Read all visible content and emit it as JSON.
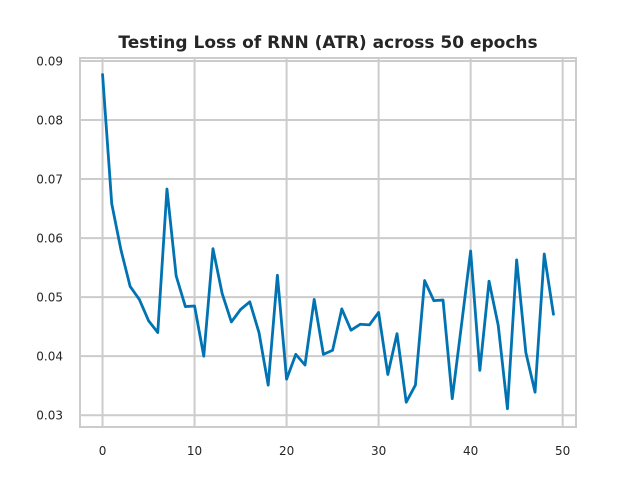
{
  "chart_data": {
    "type": "line",
    "title": "Testing Loss of RNN (ATR) across 50 epochs",
    "xlabel": "",
    "ylabel": "",
    "xlim": [
      -2.45,
      51.45
    ],
    "ylim": [
      0.028,
      0.0905
    ],
    "x_ticks": [
      0,
      10,
      20,
      30,
      40,
      50
    ],
    "y_ticks": [
      0.03,
      0.04,
      0.05,
      0.06,
      0.07,
      0.08,
      0.09
    ],
    "x_tick_labels": [
      "0",
      "10",
      "20",
      "30",
      "40",
      "50"
    ],
    "y_tick_labels": [
      "0.03",
      "0.04",
      "0.05",
      "0.06",
      "0.07",
      "0.08",
      "0.09"
    ],
    "grid": true,
    "legend": "none",
    "line_color": "#0173b2",
    "grid_color": "#cccccc",
    "series": [
      {
        "x": [
          0,
          1,
          2,
          3,
          4,
          5,
          6,
          7,
          8,
          9,
          10,
          11,
          12,
          13,
          14,
          15,
          16,
          17,
          18,
          19,
          20,
          21,
          22,
          23,
          24,
          25,
          26,
          27,
          28,
          29,
          30,
          31,
          32,
          33,
          34,
          35,
          36,
          37,
          38,
          39,
          40,
          41,
          42,
          43,
          44,
          45,
          46,
          47,
          48,
          49
        ],
        "values": [
          0.0877,
          0.0658,
          0.058,
          0.0518,
          0.0496,
          0.046,
          0.044,
          0.0683,
          0.0536,
          0.0484,
          0.0485,
          0.04,
          0.0582,
          0.0506,
          0.0458,
          0.0479,
          0.0492,
          0.044,
          0.0351,
          0.0537,
          0.0361,
          0.0403,
          0.0385,
          0.0496,
          0.0403,
          0.041,
          0.048,
          0.0444,
          0.0454,
          0.0453,
          0.0474,
          0.0369,
          0.0438,
          0.0322,
          0.0351,
          0.0528,
          0.0494,
          0.0495,
          0.0328,
          0.0452,
          0.0578,
          0.0376,
          0.0527,
          0.0452,
          0.0311,
          0.0563,
          0.0406,
          0.0339,
          0.0573,
          0.0471
        ]
      }
    ]
  }
}
